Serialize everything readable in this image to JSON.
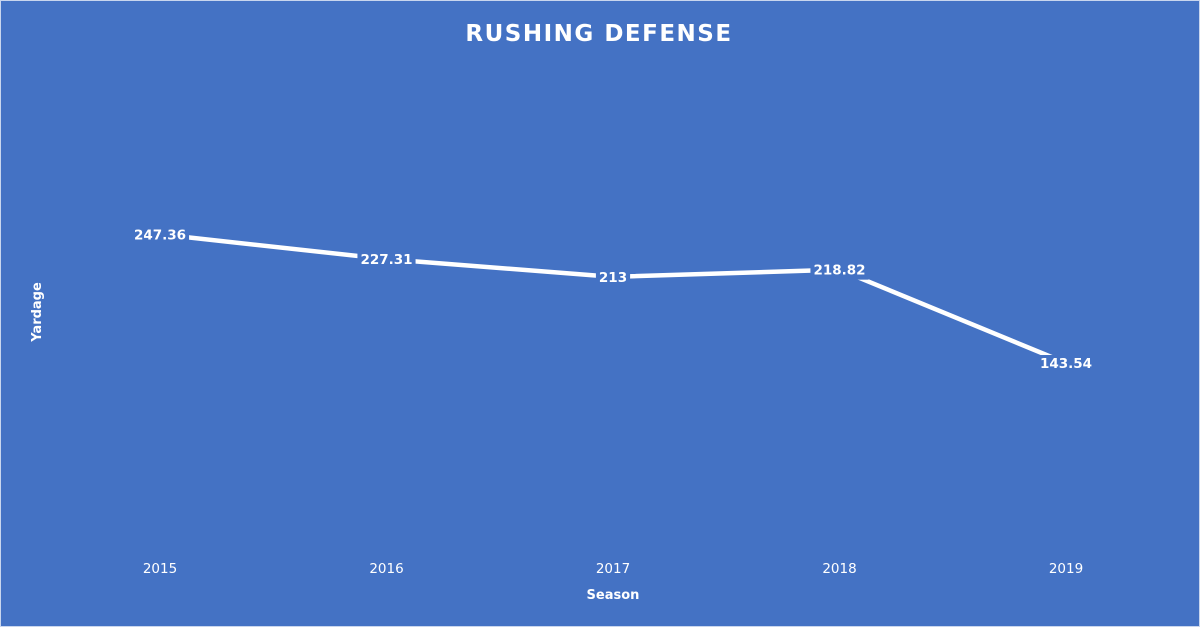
{
  "chart_data": {
    "type": "line",
    "title": "RUSHING  DEFENSE",
    "xlabel": "Season",
    "ylabel": "Yardage",
    "categories": [
      "2015",
      "2016",
      "2017",
      "2018",
      "2019"
    ],
    "series": [
      {
        "values": [
          247.36,
          227.31,
          213,
          218.82,
          143.54
        ],
        "labels": [
          "247.36",
          "227.31",
          "213",
          "218.82",
          "143.54"
        ]
      }
    ],
    "ylim": [
      0,
      400
    ],
    "grid": false,
    "legend": "none",
    "drop_lines": true,
    "data_labels": true
  },
  "colors": {
    "background": "#4472c4",
    "line": "#ffffff",
    "text": "#ffffff"
  }
}
